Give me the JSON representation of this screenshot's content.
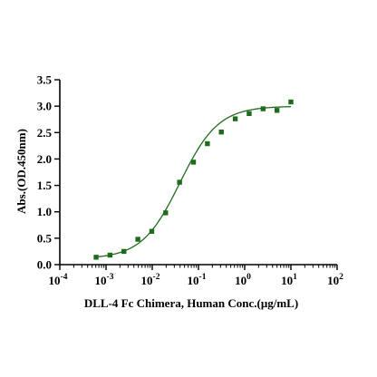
{
  "chart_data": {
    "type": "scatter",
    "xlabel": "DLL-4 Fc Chimera, Human Conc.(μg/mL)",
    "ylabel": "Abs.(OD.450nm)",
    "xscale": "log",
    "xlim": [
      0.0001,
      100
    ],
    "ylim": [
      0,
      3.5
    ],
    "x_ticks": [
      {
        "base": "10",
        "exp": "-4"
      },
      {
        "base": "10",
        "exp": "-3"
      },
      {
        "base": "10",
        "exp": "-2"
      },
      {
        "base": "10",
        "exp": "-1"
      },
      {
        "base": "10",
        "exp": "0"
      },
      {
        "base": "10",
        "exp": "1"
      },
      {
        "base": "10",
        "exp": "2"
      }
    ],
    "y_ticks": [
      "0.0",
      "0.5",
      "1.0",
      "1.5",
      "2.0",
      "2.5",
      "3.0",
      "3.5"
    ],
    "grid": false,
    "series": [
      {
        "color": "#1e6b1e",
        "marker": "square",
        "points": [
          {
            "x": 0.00061,
            "y": 0.14
          },
          {
            "x": 0.00122,
            "y": 0.18
          },
          {
            "x": 0.00244,
            "y": 0.25
          },
          {
            "x": 0.00488,
            "y": 0.48
          },
          {
            "x": 0.00977,
            "y": 0.63
          },
          {
            "x": 0.0195,
            "y": 0.98
          },
          {
            "x": 0.039,
            "y": 1.56
          },
          {
            "x": 0.078,
            "y": 1.94
          },
          {
            "x": 0.156,
            "y": 2.29
          },
          {
            "x": 0.3125,
            "y": 2.51
          },
          {
            "x": 0.625,
            "y": 2.76
          },
          {
            "x": 1.25,
            "y": 2.86
          },
          {
            "x": 2.5,
            "y": 2.95
          },
          {
            "x": 5,
            "y": 2.92
          },
          {
            "x": 10,
            "y": 3.08
          }
        ],
        "fit": {
          "model": "4PL",
          "bottom": 0.11,
          "top": 3.0,
          "ec50": 0.04,
          "hill": 1.05
        }
      }
    ]
  }
}
